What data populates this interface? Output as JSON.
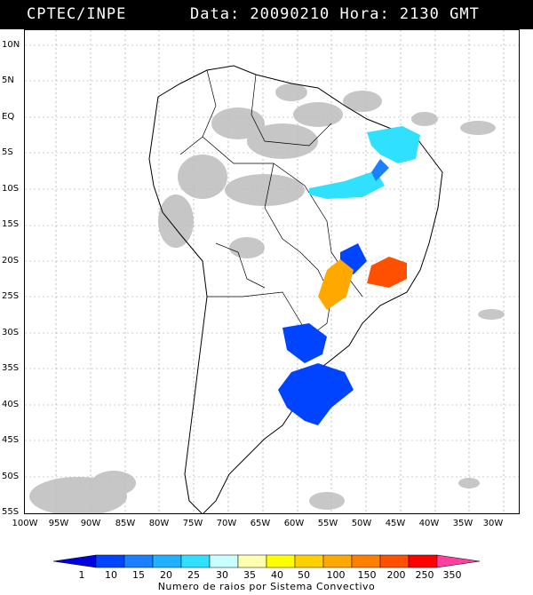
{
  "header": {
    "source": "CPTEC/INPE",
    "datetime": "Data: 20090210 Hora: 2130 GMT"
  },
  "lat_labels": [
    "10N",
    "5N",
    "EQ",
    "5S",
    "10S",
    "15S",
    "20S",
    "25S",
    "30S",
    "35S",
    "40S",
    "45S",
    "50S",
    "55S"
  ],
  "lon_labels": [
    "100W",
    "95W",
    "90W",
    "85W",
    "80W",
    "75W",
    "70W",
    "65W",
    "60W",
    "55W",
    "50W",
    "45W",
    "40W",
    "35W",
    "30W"
  ],
  "legend": {
    "title": "Numero de raios por Sistema Convectivo",
    "values": [
      "1",
      "10",
      "15",
      "20",
      "25",
      "30",
      "35",
      "40",
      "50",
      "100",
      "150",
      "200",
      "250",
      "350"
    ],
    "colors": [
      "#0000e0",
      "#0044ff",
      "#1a80ff",
      "#20b0ff",
      "#30e0ff",
      "#c8ffff",
      "#ffffb0",
      "#ffff00",
      "#ffd000",
      "#ffa800",
      "#ff8000",
      "#ff5000",
      "#ff0000",
      "#ff3fa0"
    ]
  }
}
